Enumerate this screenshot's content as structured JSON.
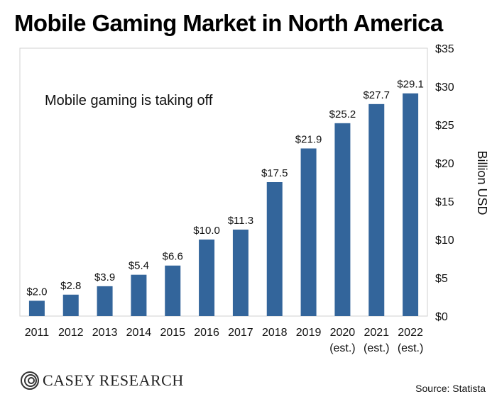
{
  "chart_data": {
    "type": "bar",
    "title": "Mobile Gaming Market in North America",
    "annotation": "Mobile gaming is taking off",
    "ylabel": "Billion USD",
    "xlabel": "",
    "categories": [
      "2011",
      "2012",
      "2013",
      "2014",
      "2015",
      "2016",
      "2017",
      "2018",
      "2019",
      "2020\n(est.)",
      "2021\n(est.)",
      "2022\n(est.)"
    ],
    "values": [
      2.0,
      2.8,
      3.9,
      5.4,
      6.6,
      10.0,
      11.3,
      17.5,
      21.9,
      25.2,
      27.7,
      29.1
    ],
    "data_labels": [
      "$2.0",
      "$2.8",
      "$3.9",
      "$5.4",
      "$6.6",
      "$10.0",
      "$11.3",
      "$17.5",
      "$21.9",
      "$25.2",
      "$27.7",
      "$29.1"
    ],
    "ylim": [
      0,
      35
    ],
    "yticks": [
      0,
      5,
      10,
      15,
      20,
      25,
      30,
      35
    ],
    "ytick_labels": [
      "$0",
      "$5",
      "$10",
      "$15",
      "$20",
      "$25",
      "$30",
      "$35"
    ],
    "yaxis_side": "right",
    "grid": false,
    "bar_color": "#33659b"
  },
  "footer": {
    "logo_text": "CASEY RESEARCH",
    "source": "Source: Statista"
  }
}
